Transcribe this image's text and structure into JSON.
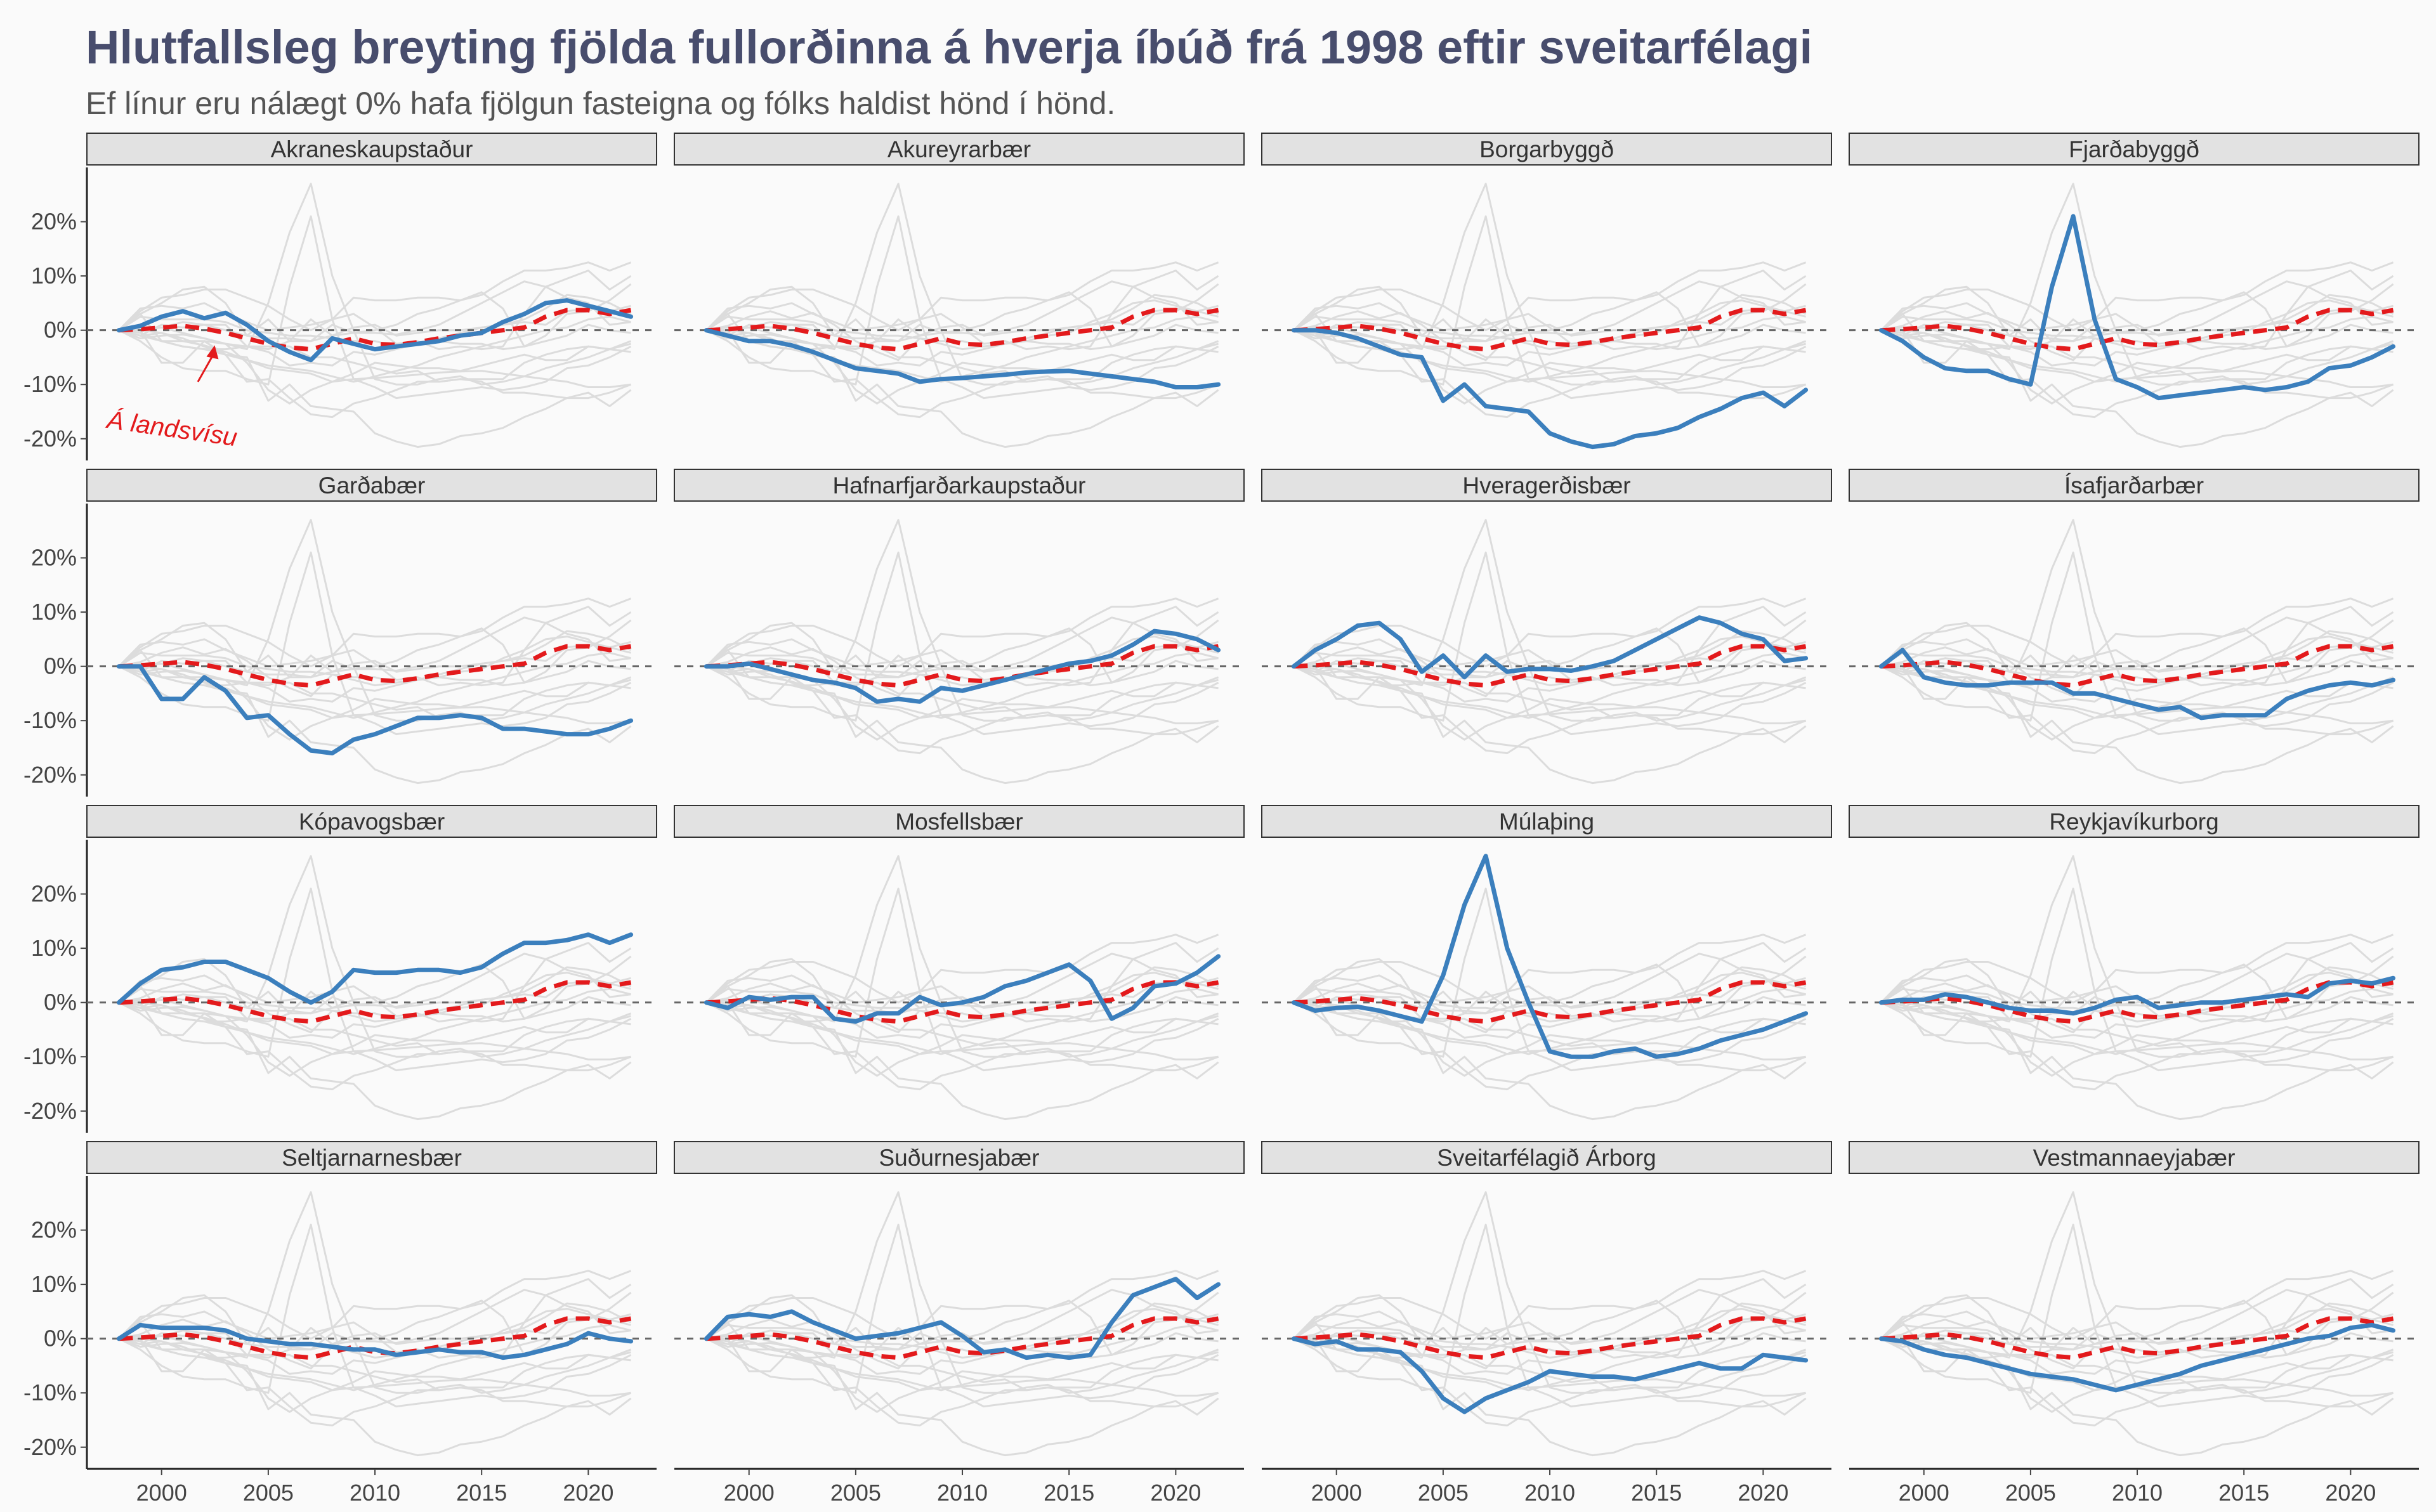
{
  "chart_data": {
    "type": "line",
    "title": "Hlutfallsleg breyting fjölda fullorðinna á hverja íbúð frá 1998 eftir sveitarfélagi",
    "subtitle": "Ef línur eru nálægt 0% hafa fjölgun fasteigna og fólks haldist hönd í hönd.",
    "x": [
      1998,
      1999,
      2000,
      2001,
      2002,
      2003,
      2004,
      2005,
      2006,
      2007,
      2008,
      2009,
      2010,
      2011,
      2012,
      2013,
      2014,
      2015,
      2016,
      2017,
      2018,
      2019,
      2020,
      2021,
      2022
    ],
    "xlim": [
      1996.5,
      2023.2
    ],
    "ylim": [
      -24,
      30
    ],
    "x_ticks": [
      2000,
      2005,
      2010,
      2015,
      2020
    ],
    "y_ticks": [
      -20,
      -10,
      0,
      10,
      20
    ],
    "y_tick_labels": [
      "-20%",
      "-10%",
      "0%",
      "10%",
      "20%"
    ],
    "reference_line": 0,
    "national": {
      "name": "Á landsvísu",
      "color": "#e31a1c",
      "values": [
        0,
        0.2,
        0.5,
        0.8,
        0.3,
        -0.5,
        -1.5,
        -2.5,
        -3.2,
        -3.5,
        -2.5,
        -1.5,
        -2.5,
        -2.7,
        -2.2,
        -1.5,
        -1,
        -0.5,
        0,
        0.5,
        2.5,
        3.7,
        3.7,
        3,
        3.7
      ]
    },
    "highlight_color": "#3b7fbd",
    "background_color": "#dcdcdc",
    "panels": [
      {
        "name": "Akraneskaupstaður",
        "values": [
          0,
          0.8,
          2.5,
          3.5,
          2.2,
          3.2,
          1,
          -2,
          -4,
          -5.5,
          -1.5,
          -2.5,
          -3.5,
          -3,
          -2.5,
          -2,
          -1,
          -0.5,
          1.5,
          3,
          5,
          5.5,
          4.5,
          3.5,
          2.5
        ]
      },
      {
        "name": "Akureyrarbær",
        "values": [
          0,
          -1,
          -2,
          -2,
          -2.8,
          -4,
          -5.5,
          -7,
          -7.5,
          -8,
          -9.5,
          -9,
          -8.8,
          -8.5,
          -8.2,
          -7.8,
          -7.6,
          -7.5,
          -8,
          -8.5,
          -9,
          -9.5,
          -10.5,
          -10.5,
          -10
        ]
      },
      {
        "name": "Borgarbyggð",
        "values": [
          0,
          0,
          -0.5,
          -1.5,
          -3,
          -4.5,
          -5,
          -13,
          -10,
          -14,
          -14.5,
          -15,
          -19,
          -20.5,
          -21.5,
          -21,
          -19.5,
          -19,
          -18,
          -16,
          -14.5,
          -12.5,
          -11.5,
          -14,
          -11
        ]
      },
      {
        "name": "Fjarðabyggð",
        "values": [
          0,
          -2,
          -5,
          -7,
          -7.5,
          -7.5,
          -9,
          -10,
          8,
          21,
          2,
          -9,
          -10.5,
          -12.5,
          -12,
          -11.5,
          -11,
          -10.5,
          -11,
          -10.5,
          -9.5,
          -7,
          -6.5,
          -5,
          -3
        ]
      },
      {
        "name": "Garðabær",
        "values": [
          0,
          0,
          -6,
          -6,
          -2,
          -4.5,
          -9.5,
          -9,
          -12.5,
          -15.5,
          -16,
          -13.5,
          -12.5,
          -11,
          -9.5,
          -9.5,
          -9,
          -9.5,
          -11.5,
          -11.5,
          -12,
          -12.5,
          -12.5,
          -11.5,
          -10
        ]
      },
      {
        "name": "Hafnarfjarðarkaupstaður",
        "values": [
          0,
          0,
          0.5,
          -0.5,
          -1.5,
          -2.5,
          -3,
          -4,
          -6.5,
          -6,
          -6.5,
          -4,
          -4.5,
          -3.5,
          -2.5,
          -1.5,
          -0.5,
          0.5,
          1,
          2,
          4,
          6.5,
          6,
          5,
          3
        ]
      },
      {
        "name": "Hveragerðisbær",
        "values": [
          0,
          3,
          5,
          7.5,
          8,
          5,
          -1,
          2,
          -2,
          2,
          -1,
          -0.5,
          -0.5,
          -0.8,
          0,
          1,
          3,
          5,
          7,
          9,
          8,
          6,
          5,
          1,
          1.5
        ]
      },
      {
        "name": "Ísafjarðarbær",
        "values": [
          0,
          3,
          -2,
          -3,
          -3.5,
          -3.5,
          -3,
          -3,
          -3,
          -5,
          -5,
          -6,
          -7,
          -8,
          -7.5,
          -9.5,
          -9,
          -9,
          -9,
          -6,
          -4.5,
          -3.5,
          -3,
          -3.5,
          -2.5
        ]
      },
      {
        "name": "Kópavogsbær",
        "values": [
          0,
          3.5,
          6,
          6.5,
          7.5,
          7.5,
          6,
          4.5,
          2,
          0,
          2,
          6,
          5.5,
          5.5,
          6,
          6,
          5.5,
          6.5,
          9,
          11,
          11,
          11.5,
          12.5,
          11,
          12.5
        ]
      },
      {
        "name": "Mosfellsbær",
        "values": [
          0,
          -1,
          1,
          0.5,
          1,
          1,
          -3,
          -3.5,
          -2,
          -2,
          1,
          -0.5,
          0,
          1,
          3,
          4,
          5.5,
          7,
          4,
          -3,
          -1,
          3,
          3.5,
          5.5,
          8.5
        ]
      },
      {
        "name": "Múlaþing",
        "values": [
          0,
          -1.5,
          -1,
          -0.8,
          -1.5,
          -2.5,
          -3.5,
          5,
          18,
          27,
          10,
          0,
          -9,
          -10,
          -10,
          -9,
          -8.5,
          -10,
          -9.5,
          -8.5,
          -7,
          -6,
          -5,
          -3.5,
          -2
        ]
      },
      {
        "name": "Reykjavíkurborg",
        "values": [
          0,
          0.5,
          0.5,
          1.5,
          1,
          0,
          -1,
          -1.5,
          -1.5,
          -2,
          -1,
          0.5,
          1,
          -1,
          -0.5,
          0,
          0,
          0.5,
          1,
          1.5,
          1,
          3.5,
          4,
          3.5,
          4.5
        ]
      },
      {
        "name": "Seltjarnarnesbær",
        "values": [
          0,
          2.5,
          2,
          2,
          2,
          1.5,
          0,
          -0.5,
          -1,
          -1,
          -1.5,
          -2,
          -2,
          -3,
          -2.5,
          -2,
          -2.5,
          -2.5,
          -3.5,
          -3,
          -2,
          -1,
          1,
          0,
          -0.5
        ]
      },
      {
        "name": "Suðurnesjabær",
        "values": [
          0,
          4,
          4.5,
          4,
          5,
          3,
          1.5,
          0,
          0.5,
          1,
          2,
          3,
          0.5,
          -2.5,
          -2,
          -3.5,
          -3,
          -3.5,
          -3,
          3,
          8,
          9.5,
          11,
          7.5,
          10
        ]
      },
      {
        "name": "Sveitarfélagið Árborg",
        "values": [
          0,
          -1,
          -0.5,
          -2,
          -2,
          -2.5,
          -6,
          -11,
          -13.5,
          -11,
          -9.5,
          -8,
          -6,
          -6.5,
          -7,
          -7,
          -7.5,
          -6.5,
          -5.5,
          -4.5,
          -5.5,
          -5.5,
          -3,
          -3.5,
          -4
        ]
      },
      {
        "name": "Vestmannaeyjabær",
        "values": [
          0,
          -0.5,
          -2,
          -3,
          -3.5,
          -4.5,
          -5.5,
          -6.5,
          -7,
          -7.5,
          -8.5,
          -9.5,
          -8.5,
          -7.5,
          -6.5,
          -5,
          -4,
          -3,
          -2,
          -1,
          0,
          0.5,
          2,
          2.5,
          1.5
        ]
      }
    ]
  }
}
